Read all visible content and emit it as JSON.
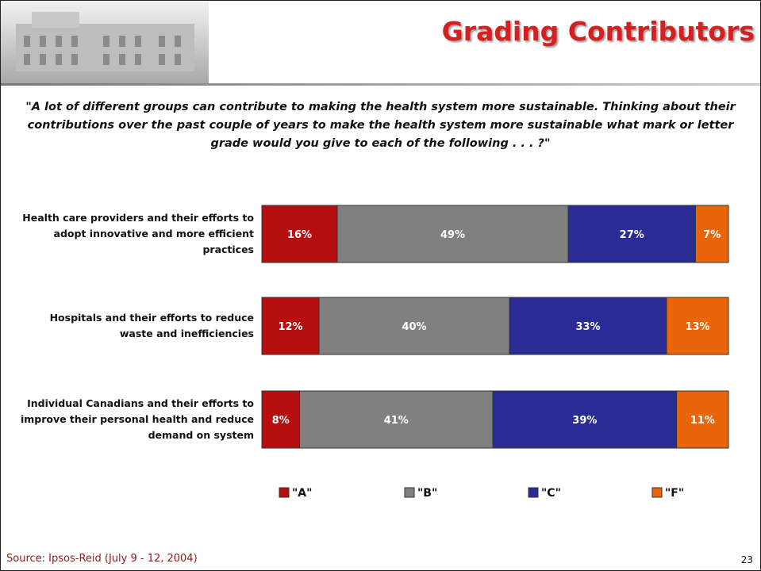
{
  "slide": {
    "title": "Grading Contributors",
    "question": "\"A lot of different groups can contribute to making the health system more sustainable. Thinking about their contributions over the past couple of years to make the health system more sustainable what mark or letter grade would you give to each of the following . . . ?\"",
    "source": "Source: Ipsos-Reid (July 9 - 12, 2004)",
    "page_number": "23"
  },
  "chart_data": {
    "type": "stacked-barh",
    "categories": [
      "Health care providers and their efforts to adopt innovative and more efficient practices",
      "Hospitals and their efforts to reduce waste and inefficiencies",
      "Individual Canadians and their efforts to improve their personal health and reduce demand on system"
    ],
    "series": [
      {
        "name": "\"A\"",
        "color": "#b50f0f",
        "values": [
          16,
          12,
          8
        ],
        "value_labels": [
          "16%",
          "12%",
          "8%"
        ]
      },
      {
        "name": "\"B\"",
        "color": "#808080",
        "values": [
          49,
          40,
          41
        ],
        "value_labels": [
          "49%",
          "40%",
          "41%"
        ]
      },
      {
        "name": "\"C\"",
        "color": "#2b2b96",
        "values": [
          27,
          33,
          39
        ],
        "value_labels": [
          "27%",
          "33%",
          "39%"
        ]
      },
      {
        "name": "\"F\"",
        "color": "#e8650a",
        "values": [
          7,
          13,
          11
        ],
        "value_labels": [
          "7%",
          "13%",
          "11%"
        ]
      }
    ],
    "legend": "bottom"
  }
}
